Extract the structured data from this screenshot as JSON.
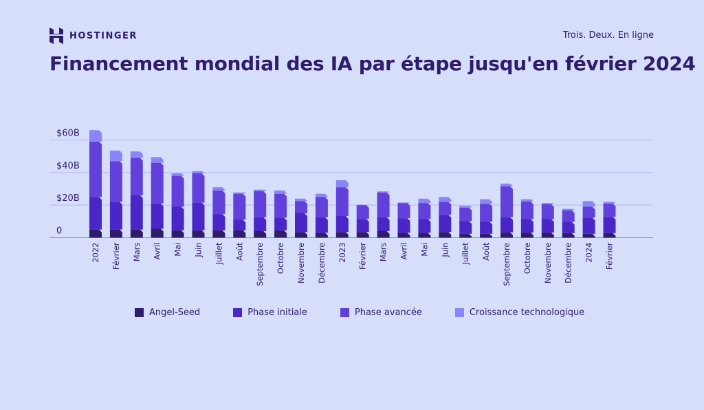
{
  "header": {
    "brand": "HOSTINGER",
    "tagline": "Trois. Deux. En ligne",
    "title": "Financement mondial des IA par étape jusqu'en février 2024"
  },
  "colors": {
    "background": "#d6defa",
    "text": "#2f1c6a",
    "grid": "#b3b6f5",
    "angel_seed": "#2f1c6a",
    "phase_initiale": "#4a26c8",
    "phase_avancee": "#6140dc",
    "croissance": "#8c85f8"
  },
  "chart_data": {
    "type": "bar",
    "stacked": true,
    "title": "Financement mondial des IA par étape jusqu'en février 2024",
    "xlabel": "",
    "ylabel": "",
    "ylim": [
      0,
      60
    ],
    "yticks": [
      0,
      20,
      40,
      60
    ],
    "ytick_labels": [
      "0",
      "$20B",
      "$40B",
      "$60B"
    ],
    "grid": true,
    "legend": "bottom",
    "categories": [
      "2022",
      "Février",
      "Mars",
      "Avril",
      "Mai",
      "Juin",
      "Juillet",
      "Août",
      "Septembre",
      "Octobre",
      "Novembre",
      "Décembre",
      "2023",
      "Février",
      "Mars",
      "Avril",
      "Mai",
      "Juin",
      "Juillet",
      "Août",
      "Septembre",
      "Octobre",
      "Novembre",
      "Décembre",
      "2024",
      "Février"
    ],
    "series": [
      {
        "name": "Angel-Seed",
        "values": [
          5,
          5,
          5,
          5.5,
          4.5,
          4.5,
          4.5,
          4.5,
          4,
          4.5,
          3.5,
          3,
          3.5,
          3.5,
          4,
          3,
          3,
          3.5,
          2.4,
          2.4,
          3.2,
          3.1,
          3.1,
          2.8,
          2.4,
          2.8
        ]
      },
      {
        "name": "Phase initiale",
        "values": [
          20,
          17,
          21,
          15.5,
          14.5,
          17,
          10,
          6.5,
          8.5,
          7.8,
          11.5,
          9.5,
          9.8,
          8,
          8.5,
          9,
          8.4,
          10.5,
          7.8,
          7.3,
          9.4,
          8.3,
          8.3,
          6.9,
          9.9,
          10
        ]
      },
      {
        "name": "Phase avancée",
        "values": [
          34,
          25,
          23,
          25,
          19,
          18,
          14.5,
          16,
          16,
          14.7,
          7.5,
          12.5,
          17.7,
          8.5,
          15.3,
          9.3,
          9.9,
          8,
          8.3,
          11.1,
          18.9,
          10.8,
          9.1,
          7.1,
          6.7,
          8.2
        ]
      },
      {
        "name": "Croissance technologique",
        "values": [
          7,
          6.5,
          4,
          3.5,
          1.5,
          1.4,
          2,
          0.8,
          1,
          2,
          1.5,
          2,
          4.3,
          0.3,
          0.6,
          0.3,
          2.7,
          3,
          1.1,
          2.8,
          1.7,
          1.4,
          0.8,
          0.9,
          3.5,
          1
        ]
      }
    ]
  }
}
